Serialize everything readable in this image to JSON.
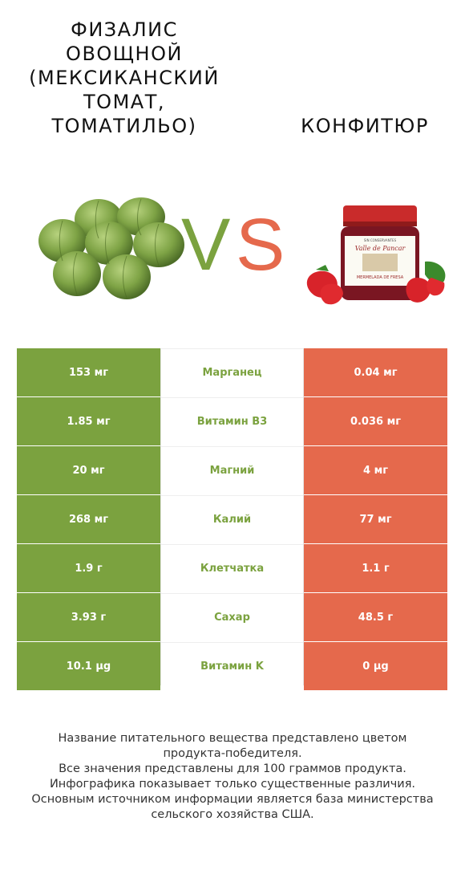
{
  "left_product": {
    "name_lines": "Физалис\nовощной\n(мексиканский\nтомат,\nтоматильо)",
    "image": "tomatillo-image",
    "color": "#7ba23f"
  },
  "right_product": {
    "name": "Конфитюр",
    "image": "jam-jar-image",
    "color": "#e5694c"
  },
  "vs": {
    "v": "V",
    "s": "S",
    "v_color": "#7ba23f",
    "s_color": "#e5694c"
  },
  "jar_label": {
    "brand": "Valle de Pancar",
    "product": "MERMELADA DE FRESA",
    "top": "SIN CONSERVANTES"
  },
  "rows": [
    {
      "left": "153 мг",
      "name": "Марганец",
      "right": "0.04 мг",
      "winner": "left"
    },
    {
      "left": "1.85 мг",
      "name": "Витамин B3",
      "right": "0.036 мг",
      "winner": "left"
    },
    {
      "left": "20 мг",
      "name": "Магний",
      "right": "4 мг",
      "winner": "left"
    },
    {
      "left": "268 мг",
      "name": "Калий",
      "right": "77 мг",
      "winner": "left"
    },
    {
      "left": "1.9 г",
      "name": "Клетчатка",
      "right": "1.1 г",
      "winner": "left"
    },
    {
      "left": "3.93 г",
      "name": "Сахар",
      "right": "48.5 г",
      "winner": "left"
    },
    {
      "left": "10.1 µg",
      "name": "Витамин K",
      "right": "0 µg",
      "winner": "left"
    }
  ],
  "footer": {
    "line1": "Название питательного вещества представлено цветом",
    "line2": "продукта-победителя.",
    "line3": "Все значения представлены для 100 граммов продукта.",
    "line4": "Инфографика показывает только существенные различия.",
    "line5": "Основным источником информации является база министерства",
    "line6": "сельского хозяйства США."
  }
}
